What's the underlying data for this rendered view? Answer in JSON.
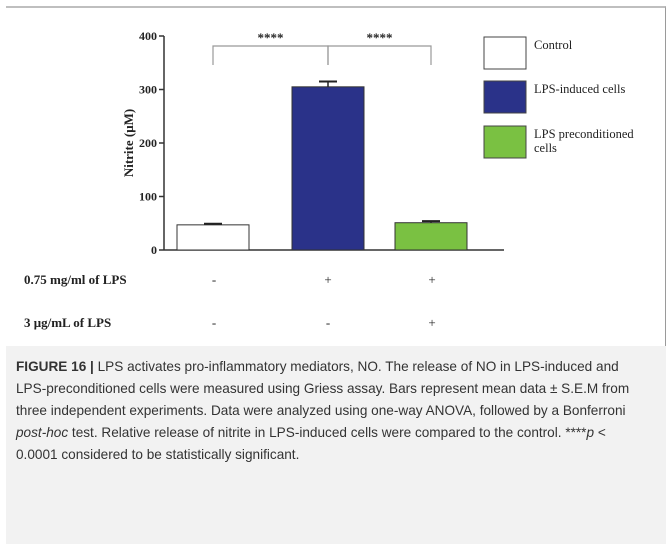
{
  "chart_data": {
    "type": "bar",
    "categories": [
      "Control",
      "LPS-induced cells",
      "LPS preconditioned cells"
    ],
    "values": [
      47,
      305,
      51
    ],
    "errors": [
      2,
      10,
      3
    ],
    "colors": [
      "#ffffff",
      "#2a3289",
      "#7ac142"
    ],
    "ylabel": "Nitrite (μM)",
    "ylim": [
      0,
      400
    ],
    "yticks": [
      0,
      100,
      200,
      300,
      400
    ],
    "legend": {
      "position": "right",
      "entries": [
        "Control",
        "LPS-induced cells",
        "LPS preconditioned cells"
      ]
    },
    "significance": [
      {
        "from": 0,
        "to": 1,
        "label": "****"
      },
      {
        "from": 1,
        "to": 2,
        "label": "****"
      }
    ]
  },
  "treatments": [
    {
      "label": "0.75 mg/ml of LPS",
      "values": [
        "-",
        "+",
        "+"
      ]
    },
    {
      "label": "3 μg/mL of LPS",
      "values": [
        "-",
        "-",
        "+"
      ]
    }
  ],
  "caption": {
    "label": "FIGURE 16 |",
    "part1": " LPS activates pro-inflammatory mediators, NO. The release of NO in LPS-induced and LPS-preconditioned cells were measured using Griess assay. Bars represent mean data ± S.E.M from three independent experiments. Data were analyzed using one-way ANOVA, followed by a Bonferroni ",
    "italic": "post-hoc",
    "part2": " test. Relative release of nitrite in LPS-induced cells were compared to the control. ****",
    "p": "p",
    "part3": " < 0.0001 considered to be statistically significant."
  }
}
